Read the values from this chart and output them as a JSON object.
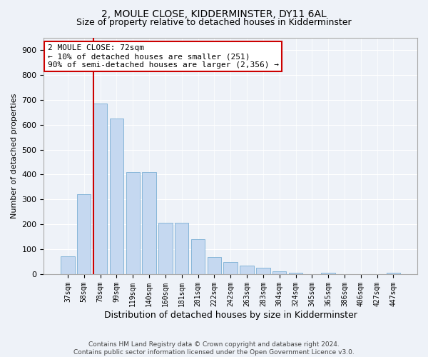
{
  "title": "2, MOULE CLOSE, KIDDERMINSTER, DY11 6AL",
  "subtitle": "Size of property relative to detached houses in Kidderminster",
  "xlabel": "Distribution of detached houses by size in Kidderminster",
  "ylabel": "Number of detached properties",
  "footer_line1": "Contains HM Land Registry data © Crown copyright and database right 2024.",
  "footer_line2": "Contains public sector information licensed under the Open Government Licence v3.0.",
  "categories": [
    "37sqm",
    "58sqm",
    "78sqm",
    "99sqm",
    "119sqm",
    "140sqm",
    "160sqm",
    "181sqm",
    "201sqm",
    "222sqm",
    "242sqm",
    "263sqm",
    "283sqm",
    "304sqm",
    "324sqm",
    "345sqm",
    "365sqm",
    "386sqm",
    "406sqm",
    "427sqm",
    "447sqm"
  ],
  "values": [
    72,
    320,
    685,
    625,
    410,
    410,
    207,
    207,
    140,
    70,
    48,
    35,
    25,
    10,
    5,
    0,
    7,
    0,
    0,
    0,
    5
  ],
  "bar_color": "#c5d8f0",
  "bar_edge_color": "#7aafd4",
  "background_color": "#eef2f8",
  "grid_color": "#ffffff",
  "vline_color": "#cc0000",
  "annotation_line1": "2 MOULE CLOSE: 72sqm",
  "annotation_line2": "← 10% of detached houses are smaller (251)",
  "annotation_line3": "90% of semi-detached houses are larger (2,356) →",
  "annotation_box_color": "#ffffff",
  "annotation_box_edge_color": "#cc0000",
  "ylim": [
    0,
    950
  ],
  "yticks": [
    0,
    100,
    200,
    300,
    400,
    500,
    600,
    700,
    800,
    900
  ],
  "title_fontsize": 10,
  "subtitle_fontsize": 9,
  "ylabel_fontsize": 8,
  "xlabel_fontsize": 9
}
